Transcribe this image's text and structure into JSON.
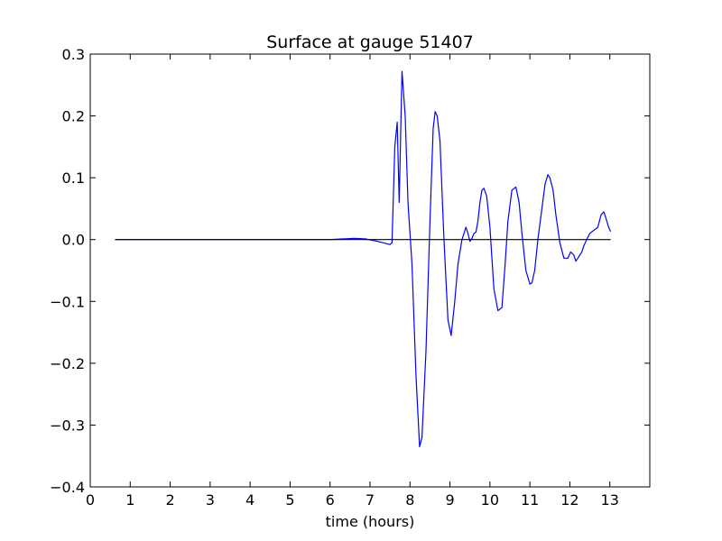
{
  "chart_data": {
    "type": "line",
    "title": "Surface at gauge 51407",
    "xlabel": "time (hours)",
    "ylabel": "",
    "xlim": [
      0,
      14
    ],
    "ylim": [
      -0.4,
      0.3
    ],
    "xticks": [
      0,
      1,
      2,
      3,
      4,
      5,
      6,
      7,
      8,
      9,
      10,
      11,
      12,
      13
    ],
    "yticks": [
      -0.4,
      -0.3,
      -0.2,
      -0.1,
      0.0,
      0.1,
      0.2,
      0.3
    ],
    "ytick_labels": [
      "−0.4",
      "−0.3",
      "−0.2",
      "−0.1",
      "0.0",
      "0.1",
      "0.2",
      "0.3"
    ],
    "grid": false,
    "colors": {
      "surface": "#0000ff",
      "baseline": "#000000"
    },
    "series": [
      {
        "x": [
          0.62,
          6.0,
          6.3,
          6.6,
          6.9,
          7.2,
          7.5,
          7.55,
          7.62,
          7.68,
          7.73,
          7.8,
          7.88,
          7.95,
          8.05,
          8.15,
          8.24,
          8.3,
          8.4,
          8.5,
          8.58,
          8.63,
          8.68,
          8.75,
          8.85,
          8.95,
          9.03,
          9.12,
          9.2,
          9.3,
          9.4,
          9.45,
          9.5,
          9.55,
          9.6,
          9.65,
          9.7,
          9.75,
          9.8,
          9.85,
          9.92,
          10.0,
          10.05,
          10.1,
          10.2,
          10.3,
          10.38,
          10.45,
          10.55,
          10.65,
          10.73,
          10.8,
          10.9,
          11.0,
          11.05,
          11.12,
          11.2,
          11.3,
          11.38,
          11.45,
          11.5,
          11.58,
          11.65,
          11.75,
          11.85,
          11.95,
          12.02,
          12.1,
          12.15,
          12.2,
          12.25,
          12.3,
          12.35,
          12.42,
          12.5,
          12.6,
          12.7,
          12.78,
          12.85,
          12.9,
          12.97,
          13.02
        ],
        "y": [
          0.0,
          0.0,
          0.001,
          0.002,
          0.001,
          -0.003,
          -0.008,
          -0.005,
          0.15,
          0.19,
          0.06,
          0.272,
          0.2,
          0.06,
          -0.04,
          -0.22,
          -0.335,
          -0.32,
          -0.18,
          0.03,
          0.18,
          0.207,
          0.2,
          0.16,
          0.0,
          -0.13,
          -0.155,
          -0.1,
          -0.04,
          0.0,
          0.02,
          0.01,
          -0.003,
          0.002,
          0.01,
          0.012,
          0.03,
          0.06,
          0.08,
          0.083,
          0.07,
          0.02,
          -0.03,
          -0.08,
          -0.115,
          -0.11,
          -0.04,
          0.03,
          0.08,
          0.085,
          0.06,
          0.01,
          -0.05,
          -0.072,
          -0.07,
          -0.05,
          0.0,
          0.05,
          0.09,
          0.105,
          0.1,
          0.08,
          0.04,
          -0.005,
          -0.03,
          -0.03,
          -0.02,
          -0.025,
          -0.035,
          -0.03,
          -0.025,
          -0.02,
          -0.01,
          0.0,
          0.01,
          0.015,
          0.02,
          0.04,
          0.045,
          0.035,
          0.02,
          0.013
        ]
      },
      {
        "x": [
          0.62,
          13.02
        ],
        "y": [
          0.0,
          0.0
        ]
      }
    ]
  }
}
